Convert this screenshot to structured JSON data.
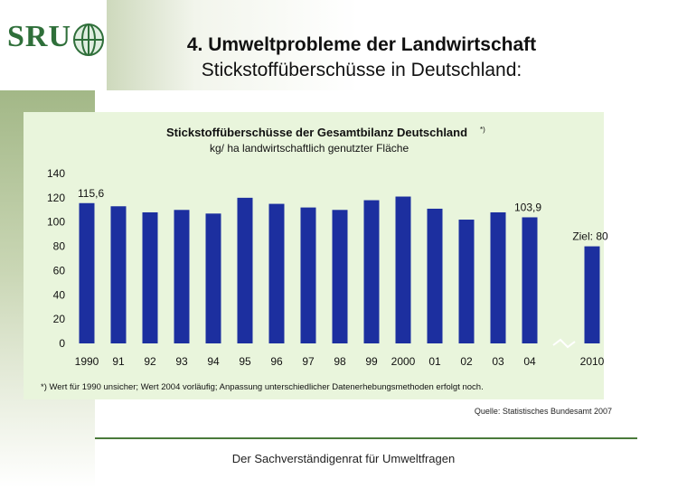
{
  "logo": {
    "text": "SRU"
  },
  "slide": {
    "title": "4. Umweltprobleme der Landwirtschaft",
    "subtitle": "Stickstoffüberschüsse in Deutschland:"
  },
  "chart_data": {
    "type": "bar",
    "title": "Stickstoffüberschüsse der Gesamtbilanz Deutschland",
    "title_superscript": "*)",
    "subtitle": "kg/ ha landwirtschaftlich genutzter Fläche",
    "categories": [
      "1990",
      "91",
      "92",
      "93",
      "94",
      "95",
      "96",
      "97",
      "98",
      "99",
      "2000",
      "01",
      "02",
      "03",
      "04",
      "2010"
    ],
    "values": [
      115.6,
      113,
      108,
      110,
      107,
      120,
      115,
      112,
      110,
      118,
      121,
      111,
      102,
      108,
      103.9,
      80
    ],
    "yticks": [
      "0",
      "20",
      "40",
      "60",
      "80",
      "100",
      "120",
      "140"
    ],
    "ylim": [
      0,
      140
    ],
    "data_labels": [
      {
        "index": 0,
        "text": "115,6"
      },
      {
        "index": 14,
        "text": "103,9"
      },
      {
        "index": 15,
        "text": "Ziel: 80"
      }
    ],
    "footnote": "*) Wert für 1990 unsicher; Wert 2004 vorläufig; Anpassung unterschiedlicher Datenerhebungsmethoden erfolgt noch.",
    "bar_color": "#1c2f9f"
  },
  "source": "Quelle: Statistisches Bundesamt 2007",
  "footer": "Der Sachverständigenrat für Umweltfragen"
}
